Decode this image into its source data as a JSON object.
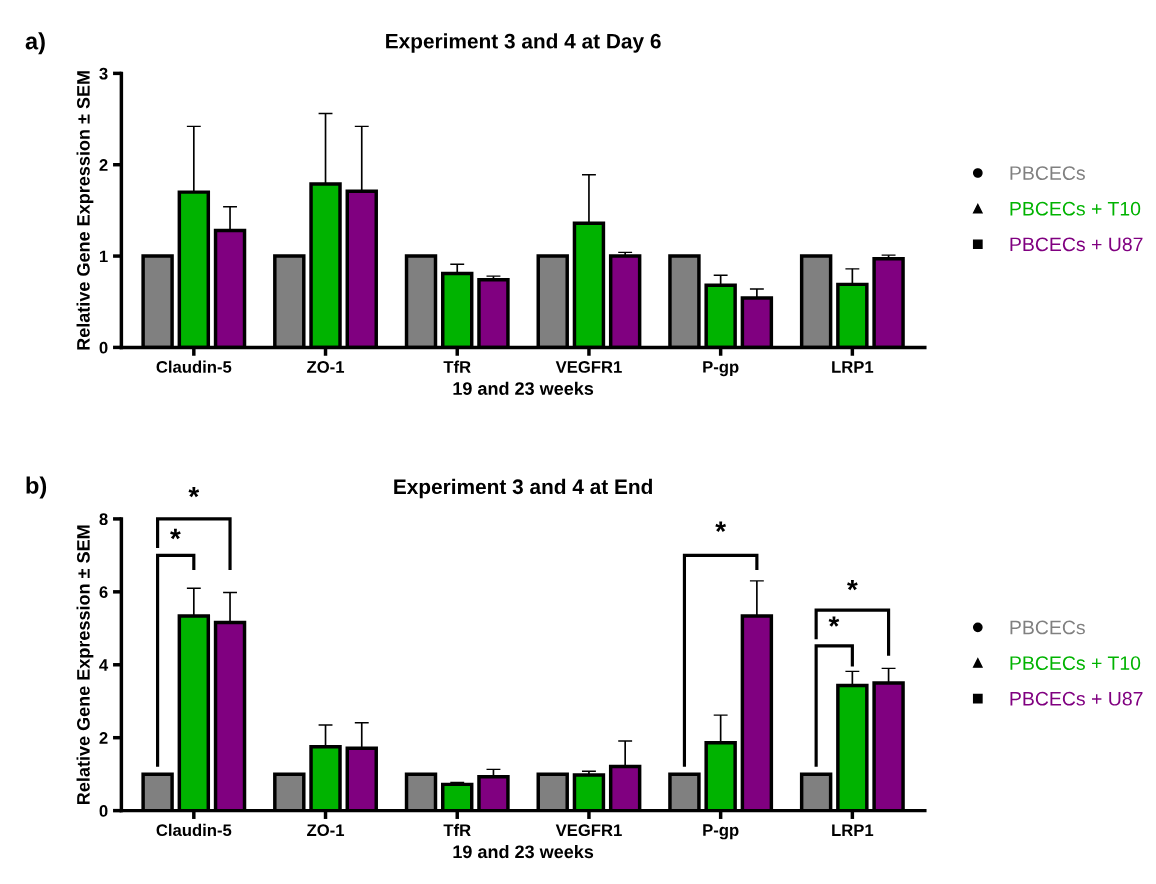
{
  "chart_data": [
    {
      "type": "bar",
      "title": "Experiment 3 and 4 at Day 6",
      "xlabel": "19 and 23 weeks",
      "ylabel": "Relative Gene Expression ± SEM",
      "categories": [
        "Claudin-5",
        "ZO-1",
        "TfR",
        "VEGFR1",
        "P-gp",
        "LRP1"
      ],
      "series": [
        {
          "name": "PBCECs",
          "color": "#808080",
          "values": [
            1,
            1,
            1,
            1,
            1,
            1
          ],
          "errors": [
            0,
            0,
            0,
            0,
            0,
            0
          ]
        },
        {
          "name": "PBCECs + T10",
          "color": "#00b300",
          "values": [
            1.7,
            1.79,
            0.81,
            1.36,
            0.68,
            0.69
          ],
          "errors": [
            0.72,
            0.77,
            0.1,
            0.53,
            0.11,
            0.17
          ]
        },
        {
          "name": "PBCECs + U87",
          "color": "#800080",
          "values": [
            1.28,
            1.71,
            0.74,
            1.0,
            0.54,
            0.97
          ],
          "errors": [
            0.26,
            0.71,
            0.04,
            0.04,
            0.1,
            0.04
          ]
        }
      ],
      "ylim": [
        0,
        3
      ],
      "yticks": [
        0,
        1,
        2,
        3
      ],
      "grid": false,
      "legend": "right",
      "marker": "circle",
      "annotations": [
        "a)"
      ]
    },
    {
      "type": "bar",
      "title": "Experiment 3 and 4 at End",
      "xlabel": "19 and 23 weeks",
      "ylabel": "Relative Gene Expression ± SEM",
      "categories": [
        "Claudin-5",
        "ZO-1",
        "TfR",
        "VEGFR1",
        "P-gp",
        "LRP1"
      ],
      "series": [
        {
          "name": "PBCECs",
          "color": "#808080",
          "values": [
            1,
            1,
            1,
            1,
            1,
            1
          ],
          "errors": [
            0,
            0,
            0,
            0,
            0,
            0
          ]
        },
        {
          "name": "PBCECs + T10",
          "color": "#00b300",
          "values": [
            5.34,
            1.75,
            0.72,
            0.98,
            1.86,
            3.43
          ],
          "errors": [
            0.76,
            0.6,
            0.05,
            0.1,
            0.76,
            0.39
          ]
        },
        {
          "name": "PBCECs + U87",
          "color": "#800080",
          "values": [
            5.16,
            1.71,
            0.93,
            1.21,
            5.34,
            3.5
          ],
          "errors": [
            0.82,
            0.7,
            0.2,
            0.7,
            0.96,
            0.4
          ]
        }
      ],
      "ylim": [
        0,
        8
      ],
      "yticks": [
        0,
        2,
        4,
        6,
        8
      ],
      "grid": false,
      "legend": "right",
      "marker": "circle",
      "annotations": [
        "b)",
        "*",
        "*",
        "*",
        "*",
        "*"
      ]
    }
  ]
}
